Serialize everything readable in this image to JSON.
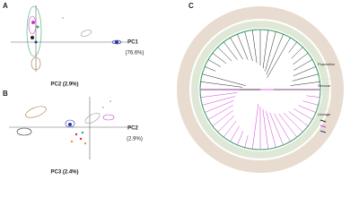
{
  "panels": [
    {
      "label": "A",
      "y_axis_label": "PC1",
      "y_axis_sublabel": "(76.6%)",
      "x_axis_label": "PC2 (2.9%)"
    },
    {
      "label": "B",
      "y_axis_label": "PC2",
      "y_axis_sublabel": "(2.9%)",
      "x_axis_label": "PC3 (2.4%)"
    },
    {
      "label": "C",
      "legend": [
        "Population",
        "Serovar",
        "Lineage"
      ]
    }
  ]
}
